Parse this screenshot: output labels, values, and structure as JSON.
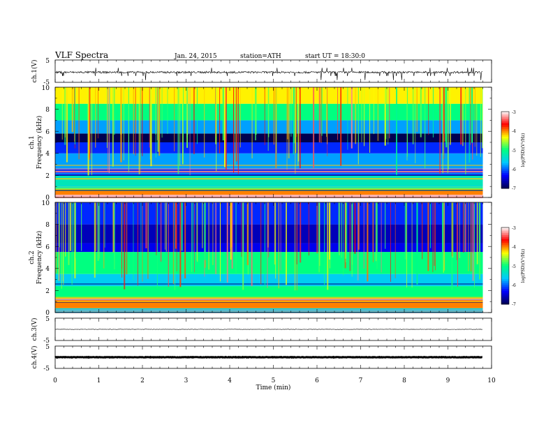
{
  "header": {
    "title": "VLF Spectra",
    "date": "Jan. 24, 2015",
    "station": "station=ATH",
    "start": "start UT = 18:30:0"
  },
  "colorbar": {
    "label": "log(PSD)(V²/Hz)",
    "ticks": [
      "-3",
      "-4",
      "-5",
      "-6",
      "-7"
    ]
  },
  "chart_data": [
    {
      "type": "line",
      "panel": "ch.1 waveform",
      "ylabel": "ch.1(V)",
      "yticks": [
        "5",
        "-5"
      ],
      "ylim": [
        -5,
        5
      ],
      "xlim": [
        0,
        10
      ],
      "data_end": 9.8,
      "signal": "noisy baseline near -0.5 V with frequent spikes up to about +1.5 V and down to -4 V",
      "color": "#000000"
    },
    {
      "type": "heatmap",
      "panel": "ch.1 spectrogram",
      "ylabel_top": "ch.1",
      "ylabel": "Frequency (kHz)",
      "yticks": [
        "10",
        "8",
        "6",
        "4",
        "2",
        "0"
      ],
      "ylim": [
        0,
        10
      ],
      "xlim": [
        0,
        10
      ],
      "data_end": 9.8,
      "zlim": [
        -7,
        -3
      ],
      "colormap": [
        "#000050",
        "#0000ff",
        "#00c8ff",
        "#00ff80",
        "#ffff00",
        "#ff0000",
        "#ffffff"
      ],
      "bands": [
        {
          "from": 0,
          "to": 0.25,
          "value": -3.2
        },
        {
          "from": 0.25,
          "to": 0.6,
          "value": -4.0
        },
        {
          "from": 0.6,
          "to": 1.0,
          "value": -4.8
        },
        {
          "from": 1.0,
          "to": 2.0,
          "value": -5.3
        },
        {
          "from": 2.0,
          "to": 2.6,
          "value": -6.2
        },
        {
          "from": 2.6,
          "to": 4.0,
          "value": -5.8
        },
        {
          "from": 4.0,
          "to": 5.0,
          "value": -6.2
        },
        {
          "from": 5.0,
          "to": 5.8,
          "value": -7.0
        },
        {
          "from": 5.8,
          "to": 7.0,
          "value": -5.8
        },
        {
          "from": 7.0,
          "to": 8.5,
          "value": -5.0
        },
        {
          "from": 8.5,
          "to": 10.0,
          "value": -4.3
        }
      ]
    },
    {
      "type": "heatmap",
      "panel": "ch.2 spectrogram",
      "ylabel_top": "ch.2",
      "ylabel": "Frequency (kHz)",
      "yticks": [
        "10",
        "8",
        "6",
        "4",
        "2",
        "0"
      ],
      "ylim": [
        0,
        10
      ],
      "xlim": [
        0,
        10
      ],
      "data_end": 9.8,
      "zlim": [
        -7,
        -3
      ],
      "colormap": [
        "#000050",
        "#0000ff",
        "#00c8ff",
        "#00ff80",
        "#ffff00",
        "#ff0000",
        "#ffffff"
      ],
      "bands": [
        {
          "from": 0,
          "to": 0.4,
          "value": -5.5
        },
        {
          "from": 0.4,
          "to": 1.2,
          "value": -4.0
        },
        {
          "from": 1.2,
          "to": 2.4,
          "value": -5.0
        },
        {
          "from": 2.4,
          "to": 3.5,
          "value": -5.6
        },
        {
          "from": 3.5,
          "to": 5.5,
          "value": -5.0
        },
        {
          "from": 5.5,
          "to": 6.3,
          "value": -6.4
        },
        {
          "from": 6.3,
          "to": 8.0,
          "value": -6.6
        },
        {
          "from": 8.0,
          "to": 10.0,
          "value": -6.2
        }
      ]
    },
    {
      "type": "line",
      "panel": "ch.3 waveform",
      "ylabel": "ch.3(V)",
      "yticks": [
        "5",
        "-5"
      ],
      "ylim": [
        -5,
        5
      ],
      "xlim": [
        0,
        10
      ],
      "data_end": 9.8,
      "signal": "flat near 0 V with small noise",
      "color": "#000000"
    },
    {
      "type": "line",
      "panel": "ch.4 waveform",
      "ylabel": "ch.4(V)",
      "yticks": [
        "5",
        "-5"
      ],
      "ylim": [
        -5,
        5
      ],
      "xlim": [
        0,
        10
      ],
      "data_end": 9.8,
      "signal": "thick flat trace near 0 V",
      "color": "#000000"
    }
  ],
  "xaxis": {
    "label": "Time (min)",
    "ticks": [
      "0",
      "1",
      "2",
      "3",
      "4",
      "5",
      "6",
      "7",
      "8",
      "9",
      "10"
    ]
  }
}
